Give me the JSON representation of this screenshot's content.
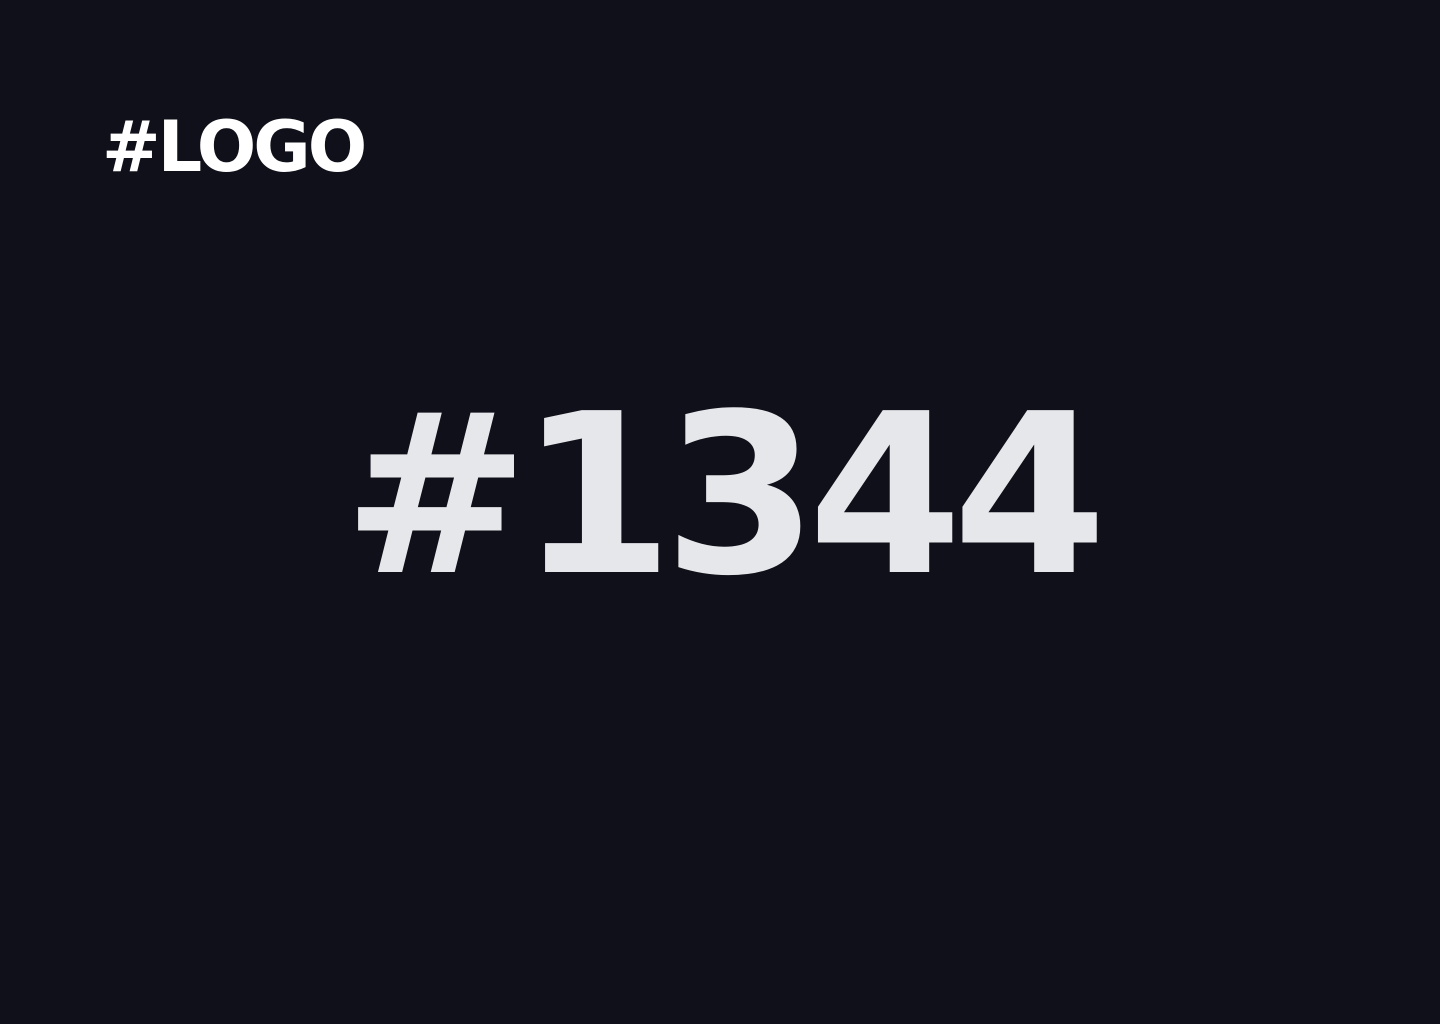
{
  "logo": {
    "text": "#LOGO"
  },
  "main": {
    "number": "#1344"
  },
  "colors": {
    "background": "#0f1019",
    "logo": "#ffffff",
    "number": "#e6e7eb"
  }
}
